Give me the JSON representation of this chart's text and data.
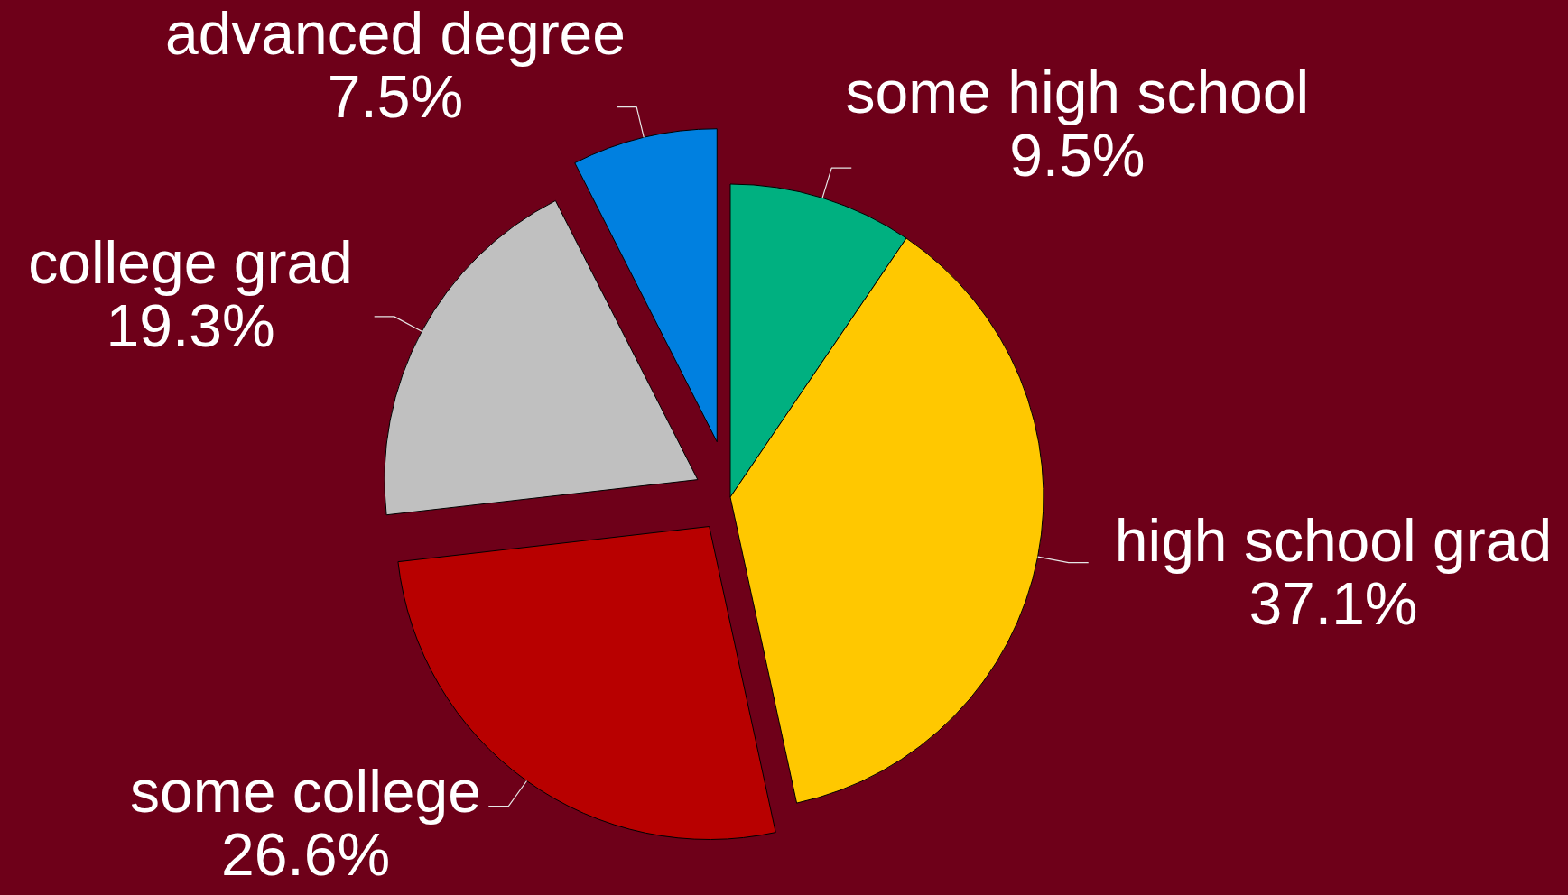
{
  "chart_data": {
    "type": "pie",
    "categories": [
      "some high school",
      "high school grad",
      "some college",
      "college grad",
      "advanced degree"
    ],
    "values": [
      9.5,
      37.1,
      26.6,
      19.3,
      7.5
    ],
    "value_labels": [
      "9.5%",
      "37.1%",
      "26.6%",
      "19.3%",
      "7.5%"
    ],
    "colors": [
      "#00b080",
      "#ffc800",
      "#b80000",
      "#c0c0c0",
      "#0080e0"
    ]
  }
}
